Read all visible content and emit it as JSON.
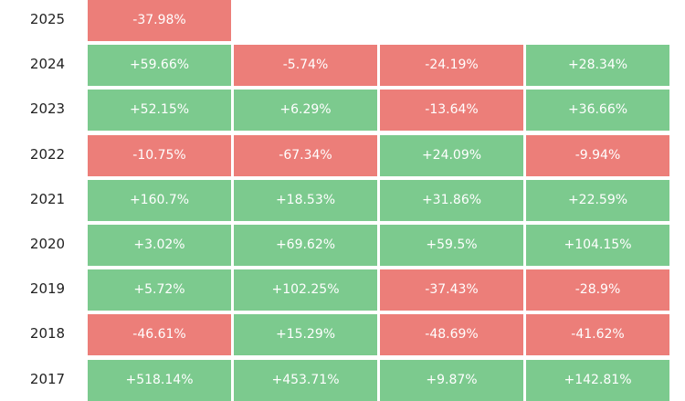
{
  "table": {
    "colors": {
      "positive": "#7cca8e",
      "negative": "#ec7e79"
    },
    "rows": [
      {
        "year": "2025",
        "cells": [
          "-37.98%"
        ]
      },
      {
        "year": "2024",
        "cells": [
          "+59.66%",
          "-5.74%",
          "-24.19%",
          "+28.34%"
        ]
      },
      {
        "year": "2023",
        "cells": [
          "+52.15%",
          "+6.29%",
          "-13.64%",
          "+36.66%"
        ]
      },
      {
        "year": "2022",
        "cells": [
          "-10.75%",
          "-67.34%",
          "+24.09%",
          "-9.94%"
        ]
      },
      {
        "year": "2021",
        "cells": [
          "+160.7%",
          "+18.53%",
          "+31.86%",
          "+22.59%"
        ]
      },
      {
        "year": "2020",
        "cells": [
          "+3.02%",
          "+69.62%",
          "+59.5%",
          "+104.15%"
        ]
      },
      {
        "year": "2019",
        "cells": [
          "+5.72%",
          "+102.25%",
          "-37.43%",
          "-28.9%"
        ]
      },
      {
        "year": "2018",
        "cells": [
          "-46.61%",
          "+15.29%",
          "-48.69%",
          "-41.62%"
        ]
      },
      {
        "year": "2017",
        "cells": [
          "+518.14%",
          "+453.71%",
          "+9.87%",
          "+142.81%"
        ]
      }
    ]
  }
}
